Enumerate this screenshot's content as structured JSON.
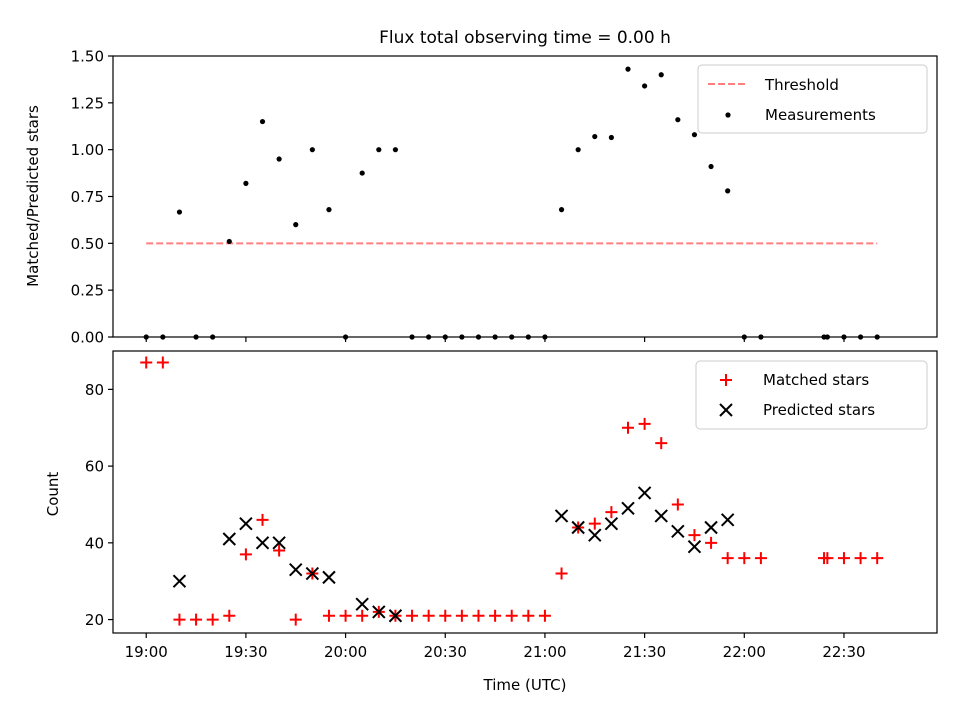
{
  "chart_data": [
    {
      "type": "scatter",
      "title": "Flux total observing time = 0.00 h",
      "ylabel": "Matched/Predicted stars",
      "xlabel": "",
      "x_range": [
        "18:50",
        "22:58"
      ],
      "ylim": [
        0,
        1.5
      ],
      "y_ticks": [
        "0.00",
        "0.25",
        "0.50",
        "0.75",
        "1.00",
        "1.25",
        "1.50"
      ],
      "legend": {
        "position": "top-right",
        "entries": [
          "Threshold",
          "Measurements"
        ]
      },
      "colors": {
        "threshold": "#ff7f7f",
        "measurements": "#000000"
      },
      "threshold": {
        "name": "Threshold",
        "value": 0.5,
        "x_start": "19:00",
        "x_end": "22:40"
      },
      "series": [
        {
          "name": "Measurements",
          "points": [
            [
              "19:00",
              0.0
            ],
            [
              "19:05",
              0.0
            ],
            [
              "19:10",
              0.667
            ],
            [
              "19:15",
              0.0
            ],
            [
              "19:20",
              0.0
            ],
            [
              "19:25",
              0.51
            ],
            [
              "19:30",
              0.82
            ],
            [
              "19:35",
              1.15
            ],
            [
              "19:40",
              0.95
            ],
            [
              "19:45",
              0.6
            ],
            [
              "19:50",
              1.0
            ],
            [
              "19:55",
              0.68
            ],
            [
              "20:00",
              0.0
            ],
            [
              "20:05",
              0.875
            ],
            [
              "20:10",
              1.0
            ],
            [
              "20:15",
              1.0
            ],
            [
              "20:20",
              0.0
            ],
            [
              "20:25",
              0.0
            ],
            [
              "20:30",
              0.0
            ],
            [
              "20:35",
              0.0
            ],
            [
              "20:40",
              0.0
            ],
            [
              "20:45",
              0.0
            ],
            [
              "20:50",
              0.0
            ],
            [
              "20:55",
              0.0
            ],
            [
              "21:00",
              0.0
            ],
            [
              "21:05",
              0.68
            ],
            [
              "21:10",
              1.0
            ],
            [
              "21:15",
              1.07
            ],
            [
              "21:20",
              1.065
            ],
            [
              "21:25",
              1.43
            ],
            [
              "21:30",
              1.34
            ],
            [
              "21:35",
              1.4
            ],
            [
              "21:40",
              1.16
            ],
            [
              "21:45",
              1.08
            ],
            [
              "21:50",
              0.91
            ],
            [
              "21:55",
              0.78
            ],
            [
              "22:00",
              0.0
            ],
            [
              "22:05",
              0.0
            ],
            [
              "22:24",
              0.0
            ],
            [
              "22:25",
              0.0
            ],
            [
              "22:30",
              0.0
            ],
            [
              "22:35",
              0.0
            ],
            [
              "22:40",
              0.0
            ]
          ]
        }
      ]
    },
    {
      "type": "scatter",
      "title": "",
      "ylabel": "Count",
      "xlabel": "Time (UTC)",
      "x_range": [
        "18:50",
        "22:58"
      ],
      "x_ticks": [
        "19:00",
        "19:30",
        "20:00",
        "20:30",
        "21:00",
        "21:30",
        "22:00",
        "22:30"
      ],
      "ylim": [
        16.5,
        90
      ],
      "y_ticks": [
        "20",
        "40",
        "60",
        "80"
      ],
      "legend": {
        "position": "top-right",
        "entries": [
          "Matched stars",
          "Predicted stars"
        ]
      },
      "colors": {
        "matched": "#ff0000",
        "predicted": "#000000"
      },
      "series": [
        {
          "name": "Matched stars",
          "points": [
            [
              "19:00",
              87
            ],
            [
              "19:05",
              87
            ],
            [
              "19:10",
              20
            ],
            [
              "19:15",
              20
            ],
            [
              "19:20",
              20
            ],
            [
              "19:25",
              21
            ],
            [
              "19:30",
              37
            ],
            [
              "19:35",
              46
            ],
            [
              "19:40",
              38
            ],
            [
              "19:45",
              20
            ],
            [
              "19:50",
              32
            ],
            [
              "19:55",
              21
            ],
            [
              "20:00",
              21
            ],
            [
              "20:05",
              21
            ],
            [
              "20:10",
              22
            ],
            [
              "20:15",
              21
            ],
            [
              "20:20",
              21
            ],
            [
              "20:25",
              21
            ],
            [
              "20:30",
              21
            ],
            [
              "20:35",
              21
            ],
            [
              "20:40",
              21
            ],
            [
              "20:45",
              21
            ],
            [
              "20:50",
              21
            ],
            [
              "20:55",
              21
            ],
            [
              "21:00",
              21
            ],
            [
              "21:05",
              32
            ],
            [
              "21:10",
              44
            ],
            [
              "21:15",
              45
            ],
            [
              "21:20",
              48
            ],
            [
              "21:25",
              70
            ],
            [
              "21:30",
              71
            ],
            [
              "21:35",
              66
            ],
            [
              "21:40",
              50
            ],
            [
              "21:45",
              42
            ],
            [
              "21:50",
              40
            ],
            [
              "21:55",
              36
            ],
            [
              "22:00",
              36
            ],
            [
              "22:05",
              36
            ],
            [
              "22:24",
              36
            ],
            [
              "22:25",
              36
            ],
            [
              "22:30",
              36
            ],
            [
              "22:35",
              36
            ],
            [
              "22:40",
              36
            ]
          ]
        },
        {
          "name": "Predicted stars",
          "points": [
            [
              "19:10",
              30
            ],
            [
              "19:25",
              41
            ],
            [
              "19:30",
              45
            ],
            [
              "19:35",
              40
            ],
            [
              "19:40",
              40
            ],
            [
              "19:45",
              33
            ],
            [
              "19:50",
              32
            ],
            [
              "19:55",
              31
            ],
            [
              "20:05",
              24
            ],
            [
              "20:10",
              22
            ],
            [
              "20:15",
              21
            ],
            [
              "21:05",
              47
            ],
            [
              "21:10",
              44
            ],
            [
              "21:15",
              42
            ],
            [
              "21:20",
              45
            ],
            [
              "21:25",
              49
            ],
            [
              "21:30",
              53
            ],
            [
              "21:35",
              47
            ],
            [
              "21:40",
              43
            ],
            [
              "21:45",
              39
            ],
            [
              "21:50",
              44
            ],
            [
              "21:55",
              46
            ]
          ]
        }
      ]
    }
  ]
}
